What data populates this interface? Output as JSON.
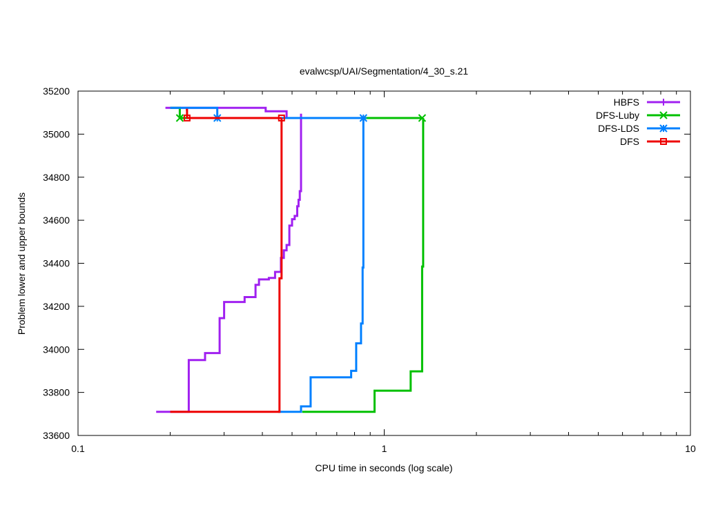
{
  "chart_data": {
    "type": "line",
    "title": "evalwcsp/UAI/Segmentation/4_30_s.21",
    "xlabel": "CPU time in seconds (log scale)",
    "ylabel": "Problem lower and upper bounds",
    "xscale": "log",
    "xlim": [
      0.1,
      10
    ],
    "ylim": [
      33600,
      35200
    ],
    "x_ticks": [
      {
        "value": 0.1,
        "label": "0.1"
      },
      {
        "value": 1,
        "label": "1"
      },
      {
        "value": 10,
        "label": "10"
      }
    ],
    "y_ticks": [
      {
        "value": 33600,
        "label": "33600"
      },
      {
        "value": 33800,
        "label": "33800"
      },
      {
        "value": 34000,
        "label": "34000"
      },
      {
        "value": 34200,
        "label": "34200"
      },
      {
        "value": 34400,
        "label": "34400"
      },
      {
        "value": 34600,
        "label": "34600"
      },
      {
        "value": 34800,
        "label": "34800"
      },
      {
        "value": 35000,
        "label": "35000"
      },
      {
        "value": 35200,
        "label": "35200"
      }
    ],
    "grid": false,
    "legend": "top-right",
    "series": [
      {
        "name": "HBFS",
        "color": "#a020f0",
        "marker": "plus",
        "upper": [
          [
            0.193,
            35122
          ],
          [
            0.41,
            35122
          ],
          [
            0.41,
            35106
          ],
          [
            0.48,
            35106
          ],
          [
            0.48,
            35070
          ],
          [
            0.48,
            35106
          ]
        ],
        "lower": [
          [
            0.18,
            33710
          ],
          [
            0.23,
            33710
          ],
          [
            0.23,
            33950
          ],
          [
            0.26,
            33950
          ],
          [
            0.26,
            33983
          ],
          [
            0.29,
            33983
          ],
          [
            0.29,
            34145
          ],
          [
            0.3,
            34145
          ],
          [
            0.3,
            34220
          ],
          [
            0.35,
            34220
          ],
          [
            0.35,
            34243
          ],
          [
            0.38,
            34243
          ],
          [
            0.38,
            34300
          ],
          [
            0.39,
            34300
          ],
          [
            0.39,
            34325
          ],
          [
            0.42,
            34325
          ],
          [
            0.42,
            34332
          ],
          [
            0.44,
            34332
          ],
          [
            0.44,
            34360
          ],
          [
            0.46,
            34360
          ],
          [
            0.46,
            34425
          ],
          [
            0.47,
            34425
          ],
          [
            0.47,
            34460
          ],
          [
            0.48,
            34460
          ],
          [
            0.48,
            34485
          ],
          [
            0.49,
            34485
          ],
          [
            0.49,
            34575
          ],
          [
            0.5,
            34575
          ],
          [
            0.5,
            34605
          ],
          [
            0.51,
            34605
          ],
          [
            0.51,
            34620
          ],
          [
            0.52,
            34620
          ],
          [
            0.52,
            34665
          ],
          [
            0.525,
            34665
          ],
          [
            0.525,
            34695
          ],
          [
            0.53,
            34695
          ],
          [
            0.53,
            34735
          ],
          [
            0.535,
            34735
          ],
          [
            0.535,
            35095
          ]
        ],
        "markers": []
      },
      {
        "name": "DFS-Luby",
        "color": "#00c000",
        "marker": "x",
        "upper": [
          [
            0.2,
            35122
          ],
          [
            0.215,
            35122
          ],
          [
            0.215,
            35075
          ],
          [
            1.33,
            35075
          ]
        ],
        "lower": [
          [
            0.54,
            33710
          ],
          [
            0.93,
            33710
          ],
          [
            0.93,
            33808
          ],
          [
            1.22,
            33808
          ],
          [
            1.22,
            33898
          ],
          [
            1.33,
            33898
          ],
          [
            1.33,
            34385
          ],
          [
            1.34,
            34385
          ],
          [
            1.34,
            35075
          ]
        ],
        "markers": [
          [
            0.215,
            35075
          ],
          [
            1.33,
            35075
          ]
        ]
      },
      {
        "name": "DFS-LDS",
        "color": "#0080ff",
        "marker": "star",
        "upper": [
          [
            0.2,
            35122
          ],
          [
            0.285,
            35122
          ],
          [
            0.285,
            35075
          ],
          [
            0.855,
            35075
          ]
        ],
        "lower": [
          [
            0.45,
            33710
          ],
          [
            0.535,
            33710
          ],
          [
            0.535,
            33735
          ],
          [
            0.575,
            33735
          ],
          [
            0.575,
            33870
          ],
          [
            0.78,
            33870
          ],
          [
            0.78,
            33900
          ],
          [
            0.81,
            33900
          ],
          [
            0.81,
            34028
          ],
          [
            0.84,
            34028
          ],
          [
            0.84,
            34120
          ],
          [
            0.85,
            34120
          ],
          [
            0.85,
            34380
          ],
          [
            0.855,
            34380
          ],
          [
            0.855,
            35075
          ]
        ],
        "markers": [
          [
            0.285,
            35075
          ],
          [
            0.855,
            35075
          ]
        ]
      },
      {
        "name": "DFS",
        "color": "#ee0000",
        "marker": "square",
        "upper": [
          [
            0.225,
            35113
          ],
          [
            0.227,
            35113
          ],
          [
            0.227,
            35075
          ],
          [
            0.462,
            35075
          ]
        ],
        "lower": [
          [
            0.2,
            33710
          ],
          [
            0.455,
            33710
          ],
          [
            0.455,
            34330
          ],
          [
            0.462,
            34330
          ],
          [
            0.462,
            35075
          ]
        ],
        "markers": [
          [
            0.227,
            35075
          ],
          [
            0.462,
            35075
          ]
        ]
      }
    ]
  }
}
